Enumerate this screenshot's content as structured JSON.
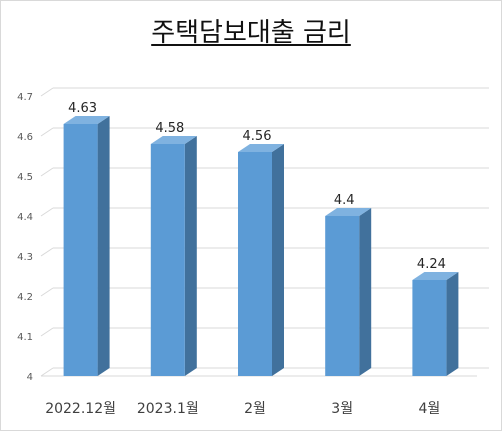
{
  "chart_data": {
    "type": "bar",
    "title": "주택담보대출 금리",
    "xlabel": "",
    "ylabel": "",
    "categories": [
      "2022.12월",
      "2023.1월",
      "2월",
      "3월",
      "4월"
    ],
    "values": [
      4.63,
      4.58,
      4.56,
      4.4,
      4.24
    ],
    "data_labels": [
      "4.63",
      "4.58",
      "4.56",
      "4.4",
      "4.24"
    ],
    "ylim": [
      4,
      4.7
    ],
    "yticks": [
      "4",
      "4.1",
      "4.2",
      "4.3",
      "4.4",
      "4.5",
      "4.6",
      "4.7"
    ],
    "grid": true,
    "legend": "none",
    "style": "3d-column",
    "colors": {
      "bar_front": "#5b9bd5",
      "bar_side": "#41719c",
      "bar_top": "#7fb2e0",
      "grid": "#d9d9d9"
    }
  }
}
